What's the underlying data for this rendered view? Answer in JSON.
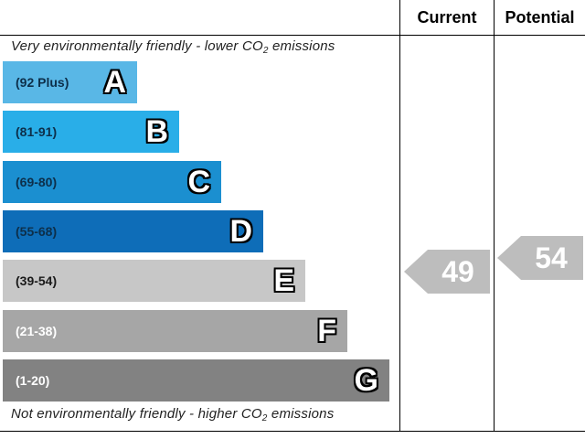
{
  "chart_data": {
    "type": "table",
    "columns": [
      "Current",
      "Potential"
    ],
    "top_note": "Very environmentally friendly - lower CO",
    "top_note_suffix": " emissions",
    "bottom_note": "Not environmentally friendly - higher CO",
    "bottom_note_suffix": " emissions",
    "co2_subscript": "2",
    "bands": [
      {
        "letter": "A",
        "range": "(92 Plus)",
        "color": "#59b7e6",
        "text_color": "#0d2f4a"
      },
      {
        "letter": "B",
        "range": "(81-91)",
        "color": "#29aee8",
        "text_color": "#0d2f4a"
      },
      {
        "letter": "C",
        "range": "(69-80)",
        "color": "#1b8fd0",
        "text_color": "#0d2f4a"
      },
      {
        "letter": "D",
        "range": "(55-68)",
        "color": "#0e6db8",
        "text_color": "#0d2f4a"
      },
      {
        "letter": "E",
        "range": "(39-54)",
        "color": "#c7c7c7",
        "text_color": "#1a1a1a"
      },
      {
        "letter": "F",
        "range": "(21-38)",
        "color": "#a6a6a6",
        "text_color": "#ffffff"
      },
      {
        "letter": "G",
        "range": "(1-20)",
        "color": "#828282",
        "text_color": "#ffffff"
      }
    ],
    "current": {
      "value": 49,
      "label": "49",
      "band": "E"
    },
    "potential": {
      "value": 54,
      "label": "54",
      "band": "E"
    }
  }
}
